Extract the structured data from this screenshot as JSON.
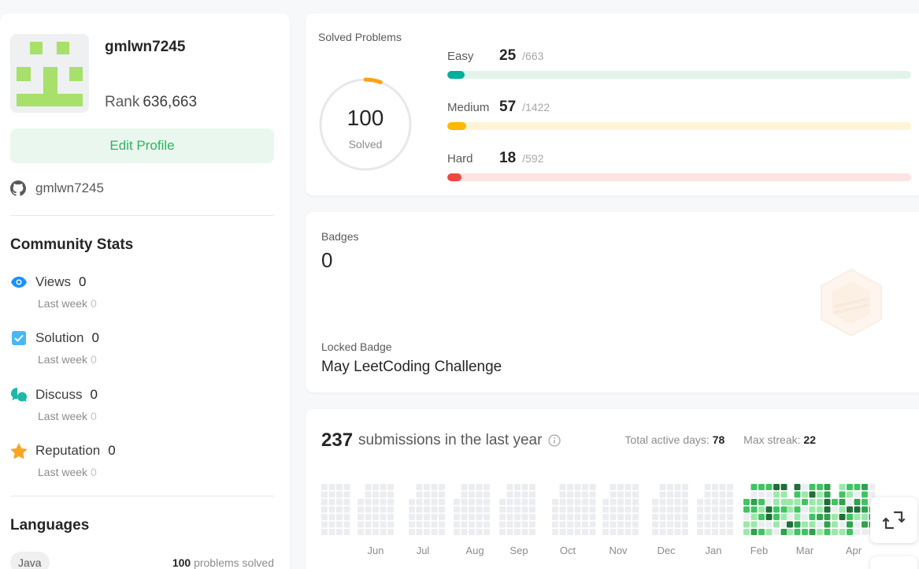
{
  "profile": {
    "username": "gmlwn7245",
    "rank_label": "Rank",
    "rank_value": "636,663",
    "edit_label": "Edit Profile",
    "github": "gmlwn7245"
  },
  "community": {
    "title": "Community Stats",
    "last_week_label": "Last week",
    "items": [
      {
        "label": "Views",
        "value": "0",
        "last_week": "0",
        "icon": "eye-icon",
        "color": "#1a90ff"
      },
      {
        "label": "Solution",
        "value": "0",
        "last_week": "0",
        "icon": "check-square-icon",
        "color": "#49b7f5"
      },
      {
        "label": "Discuss",
        "value": "0",
        "last_week": "0",
        "icon": "chat-bubbles-icon",
        "color": "#1cb8a8"
      },
      {
        "label": "Reputation",
        "value": "0",
        "last_week": "0",
        "icon": "star-icon",
        "color": "#f5a623"
      }
    ]
  },
  "languages": {
    "title": "Languages",
    "items": [
      {
        "name": "Java",
        "count": "100",
        "suffix": "problems solved"
      }
    ]
  },
  "solved": {
    "title": "Solved Problems",
    "total": "100",
    "total_label": "Solved",
    "difficulties": [
      {
        "name": "Easy",
        "solved": "25",
        "total": "/663",
        "fill_fraction": 0.0377,
        "color": "#00af9b",
        "track": "#e2f4ea"
      },
      {
        "name": "Medium",
        "solved": "57",
        "total": "/1422",
        "fill_fraction": 0.0401,
        "color": "#ffb800",
        "track": "#fff4d6"
      },
      {
        "name": "Hard",
        "solved": "18",
        "total": "/592",
        "fill_fraction": 0.0304,
        "color": "#ef4743",
        "track": "#fde3e3"
      }
    ]
  },
  "badges": {
    "title": "Badges",
    "count": "0",
    "locked_label": "Locked Badge",
    "locked_name": "May LeetCoding Challenge"
  },
  "submissions": {
    "count": "237",
    "text": "submissions in the last year",
    "active_label": "Total active days:",
    "active_value": "78",
    "streak_label": "Max streak:",
    "streak_value": "22",
    "months": [
      "Jun",
      "Jul",
      "Aug",
      "Sep",
      "Oct",
      "Nov",
      "Dec",
      "Jan",
      "Feb",
      "Mar",
      "Apr"
    ]
  }
}
